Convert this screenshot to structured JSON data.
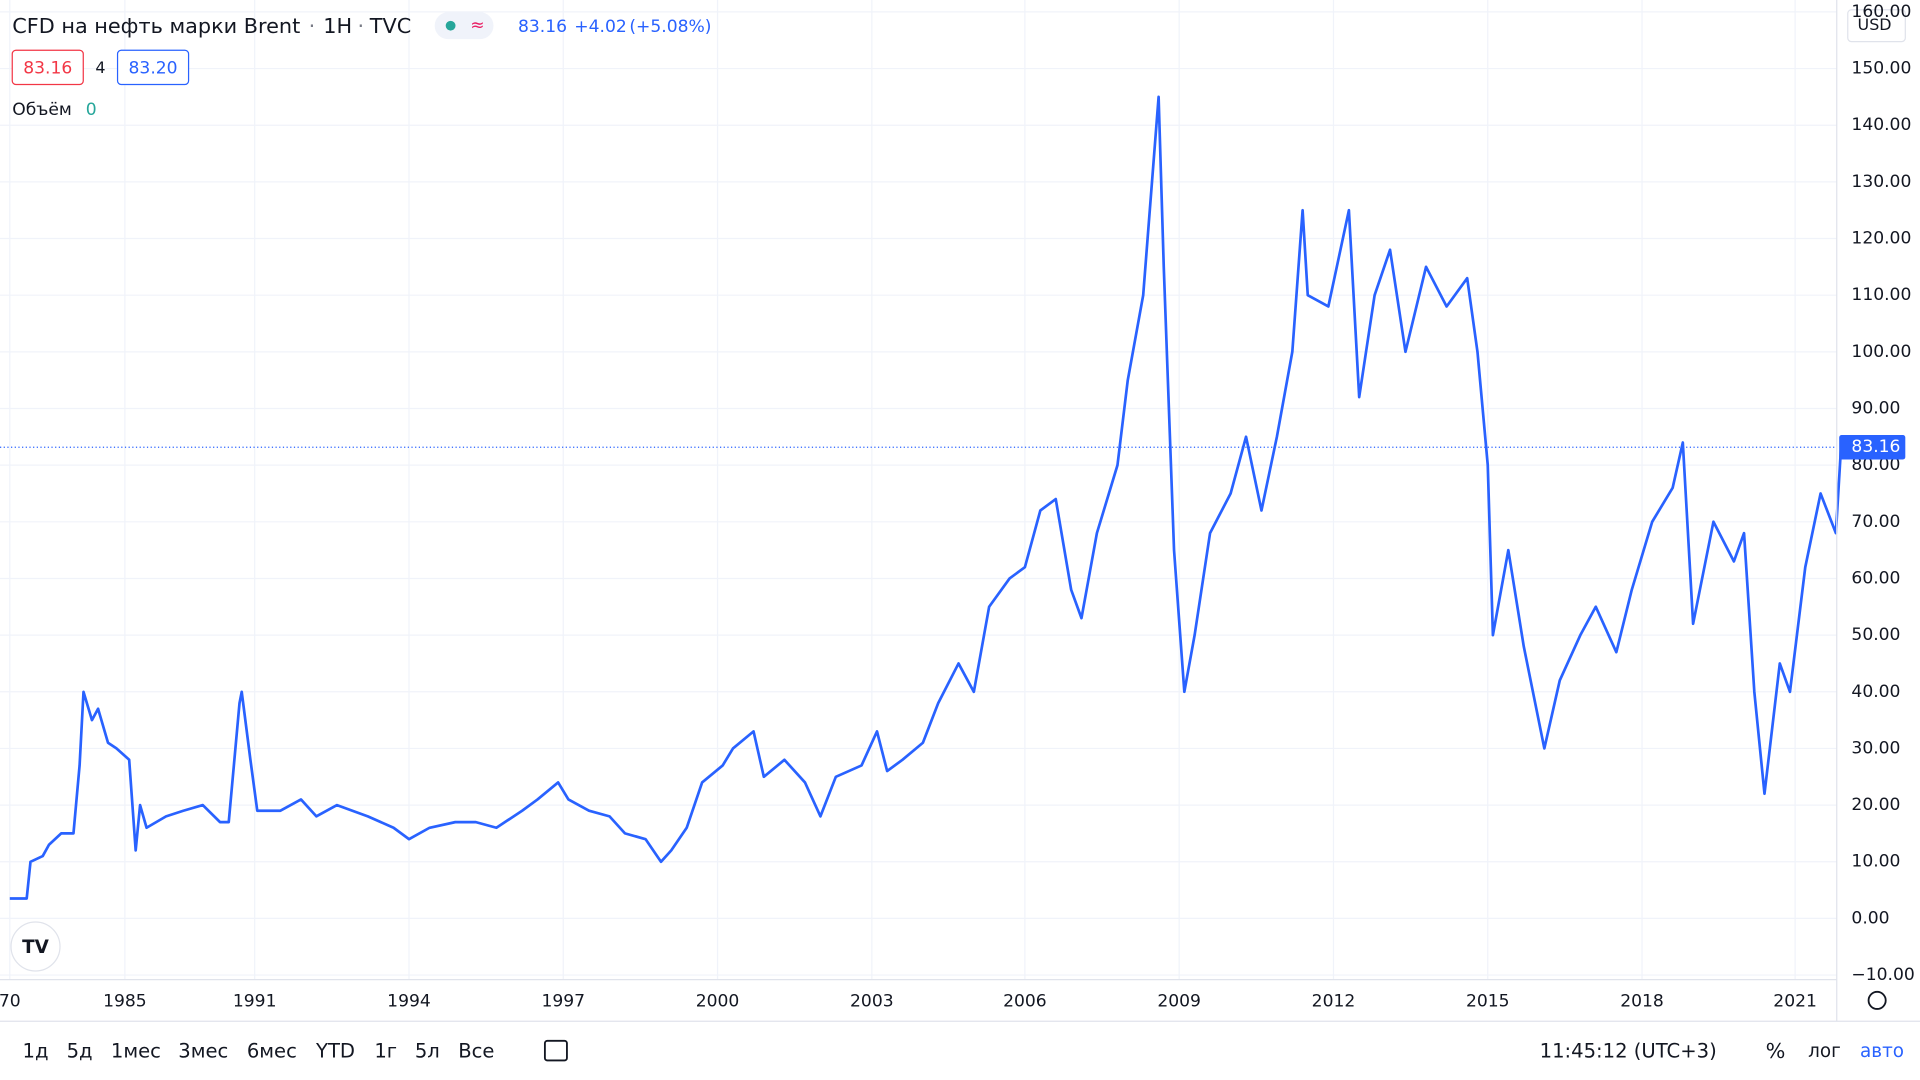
{
  "header": {
    "symbol": "CFD на нефть марки Brent",
    "interval": "1H",
    "exchange": "TVC",
    "sep": "·",
    "last": "83.16",
    "change": "+4.02",
    "change_pct": "(+5.08%)",
    "bid": "83.16",
    "spread": "4",
    "ask": "83.20",
    "volume_label": "Объём",
    "volume": "0",
    "currency": "USD"
  },
  "toolbar": {
    "ranges": [
      "1д",
      "5д",
      "1мес",
      "3мес",
      "6мес",
      "YTD",
      "1г",
      "5л",
      "Все"
    ],
    "time": "11:45:12 (UTC+3)",
    "percent": "%",
    "log": "лог",
    "auto": "авто"
  },
  "chart_data": {
    "type": "line",
    "last_price": 83.16,
    "x": [
      1970,
      1972.2,
      1972.7,
      1974.3,
      1975.1,
      1976.7,
      1978.3,
      1979.1,
      1979.6,
      1980.7,
      1981.5,
      1982.8,
      1983.9,
      1985.2,
      1985.5,
      1985.7,
      1986.0,
      1986.9,
      1987.7,
      1988.6,
      1989.4,
      1989.8,
      1990.3,
      1990.4,
      1990.8,
      1991.05,
      1991.5,
      1991.9,
      1992.2,
      1992.6,
      1993.2,
      1993.7,
      1994.0,
      1994.4,
      1994.9,
      1995.3,
      1995.7,
      1996.2,
      1996.5,
      1996.9,
      1997.1,
      1997.5,
      1997.9,
      1998.2,
      1998.6,
      1998.9,
      1999.1,
      1999.4,
      1999.7,
      2000.1,
      2000.3,
      2000.7,
      2000.9,
      2001.3,
      2001.7,
      2002.0,
      2002.3,
      2002.8,
      2003.1,
      2003.3,
      2003.6,
      2004.0,
      2004.3,
      2004.7,
      2005.0,
      2005.3,
      2005.7,
      2006.0,
      2006.3,
      2006.6,
      2006.9,
      2007.1,
      2007.4,
      2007.8,
      2008.0,
      2008.3,
      2008.6,
      2008.7,
      2008.9,
      2009.1,
      2009.3,
      2009.6,
      2010.0,
      2010.3,
      2010.6,
      2010.9,
      2011.2,
      2011.4,
      2011.5,
      2011.9,
      2012.3,
      2012.5,
      2012.8,
      2013.1,
      2013.4,
      2013.8,
      2014.2,
      2014.6,
      2014.8,
      2015.0,
      2015.1,
      2015.4,
      2015.7,
      2016.1,
      2016.4,
      2016.8,
      2017.1,
      2017.5,
      2017.8,
      2018.2,
      2018.6,
      2018.8,
      2019.0,
      2019.4,
      2019.8,
      2020.0,
      2020.2,
      2020.4,
      2020.7,
      2020.9,
      2021.2,
      2021.5,
      2021.8,
      2021.9
    ],
    "series": [
      {
        "color": "#2962ff",
        "values": [
          3.5,
          3.5,
          10,
          11,
          13,
          15,
          15,
          27,
          40,
          35,
          37,
          31,
          30,
          28,
          12,
          20,
          16,
          18,
          19,
          20,
          17,
          17,
          38,
          40,
          28,
          19,
          19,
          21,
          18,
          20,
          18,
          16,
          14,
          16,
          17,
          17,
          16,
          19,
          21,
          24,
          21,
          19,
          18,
          15,
          14,
          10,
          12,
          16,
          24,
          27,
          30,
          33,
          25,
          28,
          24,
          18,
          25,
          27,
          33,
          26,
          28,
          31,
          38,
          45,
          40,
          55,
          60,
          62,
          72,
          74,
          58,
          53,
          68,
          80,
          95,
          110,
          145,
          115,
          65,
          40,
          50,
          68,
          75,
          85,
          72,
          85,
          100,
          125,
          110,
          108,
          125,
          92,
          110,
          118,
          100,
          115,
          108,
          113,
          100,
          80,
          50,
          65,
          48,
          30,
          42,
          50,
          55,
          47,
          58,
          70,
          76,
          84,
          52,
          70,
          63,
          68,
          40,
          22,
          45,
          40,
          62,
          75,
          68,
          83.16
        ]
      }
    ],
    "ylim": [
      -10.8,
      162.1
    ],
    "yticks": [
      {
        "value": -10,
        "label": "−10.00"
      },
      {
        "value": 0,
        "label": "0.00"
      },
      {
        "value": 10,
        "label": "10.00"
      },
      {
        "value": 20,
        "label": "20.00"
      },
      {
        "value": 30,
        "label": "30.00"
      },
      {
        "value": 40,
        "label": "40.00"
      },
      {
        "value": 50,
        "label": "50.00"
      },
      {
        "value": 60,
        "label": "60.00"
      },
      {
        "value": 70,
        "label": "70.00"
      },
      {
        "value": 80,
        "label": "80.00"
      },
      {
        "value": 90,
        "label": "90.00"
      },
      {
        "value": 100,
        "label": "100.00"
      },
      {
        "value": 110,
        "label": "110.00"
      },
      {
        "value": 120,
        "label": "120.00"
      },
      {
        "value": 130,
        "label": "130.00"
      },
      {
        "value": 140,
        "label": "140.00"
      },
      {
        "value": 150,
        "label": "150.00"
      },
      {
        "value": 160,
        "label": "160.00"
      }
    ],
    "xticks": [
      {
        "value": 1970,
        "label": "70"
      },
      1985,
      1991,
      1994,
      1997,
      2000,
      2003,
      2006,
      2009,
      2012,
      2015,
      2018,
      2021
    ],
    "grid": true
  }
}
